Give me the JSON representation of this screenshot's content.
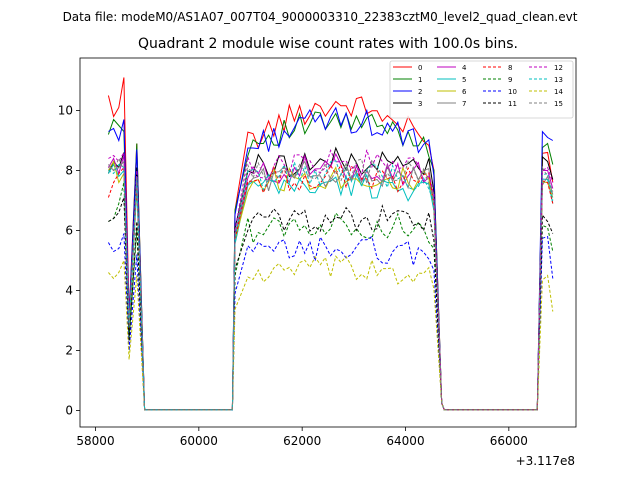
{
  "chart_data": {
    "type": "line",
    "suptitle": "Data file: modeM0/AS1A07_007T04_9000003310_22383cztM0_level2_quad_clean.evt",
    "title": "Quadrant 2 module wise count rates with 100.0s bins.",
    "xlabel": "",
    "ylabel": "",
    "x_offset_label": "+3.117e8",
    "xlim": [
      57700,
      67300
    ],
    "ylim": [
      -0.55,
      11.75
    ],
    "x_ticks": [
      58000,
      60000,
      62000,
      64000,
      66000
    ],
    "y_ticks": [
      0,
      2,
      4,
      6,
      8,
      10
    ],
    "grid": false,
    "legend_placement": "top-right",
    "segments": [
      {
        "start": 58250,
        "end": 58650,
        "low_after": 58950
      },
      {
        "start": 60950,
        "end": 64450,
        "low_before": 60650,
        "low_after": 64750
      },
      {
        "start": 66650,
        "end": 66850,
        "low_before": 66550
      }
    ],
    "low_x": [
      58950,
      59250,
      59550,
      59850,
      60150,
      60450,
      60650,
      64750,
      65050,
      65350,
      65650,
      65950,
      66250,
      66550
    ],
    "low_value": 0.02,
    "series": [
      {
        "name": "0",
        "color": "#ff0000",
        "dash": "solid",
        "level": 8.9,
        "drift": 1.3,
        "first": [
          10.5,
          9.8,
          10.1,
          11.1,
          3.2
        ],
        "last": [
          8.6,
          7.6
        ]
      },
      {
        "name": "1",
        "color": "#008000",
        "dash": "solid",
        "level": 8.9,
        "drift": 0.7,
        "first": [
          9.2,
          9.7,
          9.5,
          9.3,
          3.0
        ],
        "last": [
          8.9,
          8.2
        ]
      },
      {
        "name": "2",
        "color": "#0000ff",
        "dash": "solid",
        "level": 8.7,
        "drift": 1.0,
        "first": [
          9.3,
          9.4,
          9.0,
          9.7,
          3.1
        ],
        "last": [
          9.1,
          9.0
        ]
      },
      {
        "name": "3",
        "color": "#000000",
        "dash": "solid",
        "level": 8.1,
        "drift": 0.2,
        "first": [
          7.9,
          8.3,
          8.1,
          8.6,
          2.8
        ],
        "last": [
          8.3,
          7.7
        ]
      },
      {
        "name": "4",
        "color": "#bf00bf",
        "dash": "solid",
        "level": 7.8,
        "drift": 0.3,
        "first": [
          8.1,
          8.4,
          7.9,
          8.5,
          2.9
        ],
        "last": [
          8.0,
          7.4
        ]
      },
      {
        "name": "5",
        "color": "#00bfbf",
        "dash": "solid",
        "level": 7.4,
        "drift": 0.1,
        "first": [
          7.9,
          8.2,
          7.8,
          8.0,
          2.6
        ],
        "last": [
          7.7,
          6.9
        ]
      },
      {
        "name": "6",
        "color": "#bfbf00",
        "dash": "solid",
        "level": 7.6,
        "drift": 0.2,
        "first": [
          8.0,
          8.3,
          7.6,
          7.9,
          2.7
        ],
        "last": [
          7.6,
          7.1
        ]
      },
      {
        "name": "7",
        "color": "#808080",
        "dash": "solid",
        "level": 7.7,
        "drift": 0.2,
        "first": [
          8.2,
          8.0,
          8.1,
          8.3,
          2.8
        ],
        "last": [
          7.8,
          7.2
        ]
      },
      {
        "name": "8",
        "color": "#ff0000",
        "dash": "dashed",
        "level": 7.6,
        "drift": 0.2,
        "first": [
          7.1,
          7.6,
          7.9,
          8.1,
          2.7
        ],
        "last": [
          7.6,
          6.9
        ]
      },
      {
        "name": "9",
        "color": "#008000",
        "dash": "dashed",
        "level": 6.0,
        "drift": 0.2,
        "first": [
          6.3,
          6.4,
          6.9,
          7.6,
          2.4
        ],
        "last": [
          6.1,
          5.3
        ]
      },
      {
        "name": "10",
        "color": "#0000ff",
        "dash": "dashed",
        "level": 5.2,
        "drift": 0.2,
        "first": [
          5.6,
          5.3,
          5.4,
          5.9,
          2.0
        ],
        "last": [
          5.8,
          4.4
        ]
      },
      {
        "name": "11",
        "color": "#000000",
        "dash": "dashed",
        "level": 6.3,
        "drift": 0.1,
        "first": [
          6.3,
          6.4,
          6.6,
          7.1,
          2.3
        ],
        "last": [
          6.3,
          5.9
        ]
      },
      {
        "name": "12",
        "color": "#bf00bf",
        "dash": "dashed",
        "level": 8.0,
        "drift": 0.3,
        "first": [
          8.4,
          8.5,
          8.3,
          8.6,
          2.9
        ],
        "last": [
          8.1,
          7.6
        ]
      },
      {
        "name": "13",
        "color": "#00bfbf",
        "dash": "dashed",
        "level": 7.7,
        "drift": 0.2,
        "first": [
          8.0,
          7.9,
          8.2,
          8.1,
          2.8
        ],
        "last": [
          7.9,
          7.0
        ]
      },
      {
        "name": "14",
        "color": "#bfbf00",
        "dash": "dashed",
        "level": 4.5,
        "drift": 0.2,
        "first": [
          4.6,
          4.4,
          4.6,
          5.0,
          1.7
        ],
        "last": [
          4.5,
          3.3
        ]
      },
      {
        "name": "15",
        "color": "#808080",
        "dash": "dashed",
        "level": 7.8,
        "drift": 0.2,
        "first": [
          8.1,
          8.0,
          8.4,
          8.0,
          2.8
        ],
        "last": [
          7.8,
          7.3
        ]
      }
    ]
  }
}
